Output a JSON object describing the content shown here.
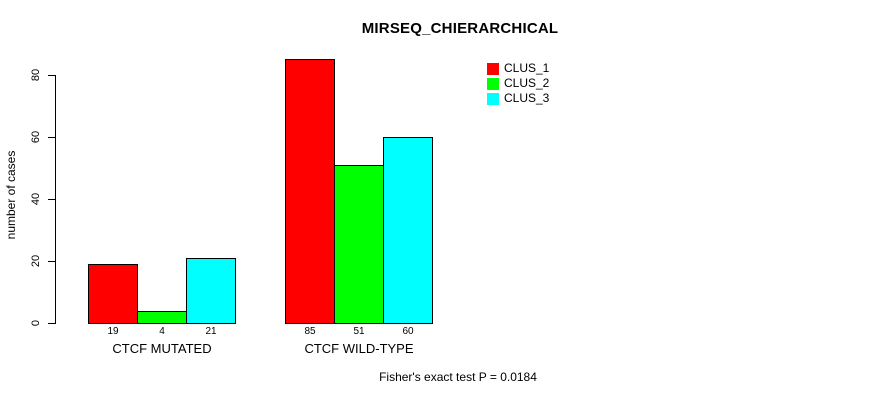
{
  "chart_data": {
    "type": "bar",
    "title": "MIRSEQ_CHIERARCHICAL",
    "xlabel": "",
    "ylabel": "number of cases",
    "categories": [
      "CTCF MUTATED",
      "CTCF WILD-TYPE"
    ],
    "series": [
      {
        "name": "CLUS_1",
        "color": "#ff0000",
        "values": [
          19,
          85
        ]
      },
      {
        "name": "CLUS_2",
        "color": "#00ff00",
        "values": [
          4,
          51
        ]
      },
      {
        "name": "CLUS_3",
        "color": "#00ffff",
        "values": [
          21,
          60
        ]
      }
    ],
    "bar_value_labels": [
      [
        "19",
        "4",
        "21"
      ],
      [
        "85",
        "51",
        "60"
      ]
    ],
    "yticks": [
      0,
      20,
      40,
      60,
      80
    ],
    "ylim": [
      0,
      80
    ],
    "grid": false,
    "legend_position": "topright",
    "annotation": "Fisher's exact test P = 0.0184",
    "background_color": "#ffffff",
    "bar_border_color": "#000000",
    "text_color": "#000000"
  }
}
